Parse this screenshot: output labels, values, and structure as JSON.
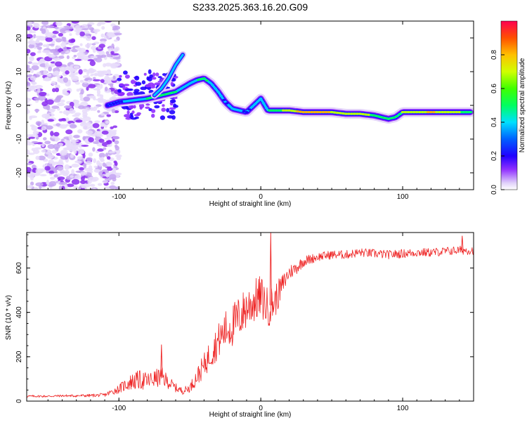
{
  "title": "S233.2025.363.16.20.G09",
  "chart_data": [
    {
      "type": "heatmap",
      "xlabel": "Height of straight line (km)",
      "ylabel": "Frequency (Hz)",
      "xlim": [
        -165,
        150
      ],
      "ylim": [
        -25,
        25
      ],
      "x_ticks": [
        -100,
        0,
        100
      ],
      "y_ticks": [
        -20,
        -10,
        0,
        10,
        20
      ],
      "colorbar": {
        "label": "Normalized spectral amplitude",
        "range": [
          0,
          1
        ],
        "ticks": [
          "0.0",
          "0.2",
          "0.4",
          "0.6",
          "0.8"
        ],
        "tick_values": [
          0.0,
          0.2,
          0.4,
          0.6,
          0.8
        ],
        "colors": [
          "#ffffff",
          "#c8a8f0",
          "#8000ff",
          "#0000ff",
          "#00ffff",
          "#00ff00",
          "#ffff00",
          "#ff8000",
          "#ff0040"
        ]
      },
      "ridge": {
        "x": [
          -108,
          -100,
          -90,
          -80,
          -70,
          -60,
          -50,
          -45,
          -40,
          -35,
          -30,
          -25,
          -20,
          -15,
          -10,
          -5,
          0,
          5,
          10,
          20,
          30,
          40,
          50,
          60,
          70,
          80,
          85,
          90,
          95,
          100,
          110,
          120,
          130,
          140,
          148
        ],
        "y": [
          0,
          1,
          1.5,
          2,
          3,
          4,
          6.5,
          7.5,
          8,
          6.5,
          4,
          1,
          -1,
          -1.5,
          -2,
          0,
          2,
          -1.5,
          -1.5,
          -1.5,
          -2,
          -2,
          -2,
          -2.5,
          -2.5,
          -3,
          -3.5,
          -4,
          -3.5,
          -2,
          -2,
          -2,
          -2,
          -2,
          -2
        ],
        "amplitude": [
          0.3,
          0.35,
          0.45,
          0.5,
          0.55,
          0.5,
          0.45,
          0.5,
          0.55,
          0.45,
          0.4,
          0.35,
          0.4,
          0.4,
          0.35,
          0.4,
          0.45,
          0.5,
          0.6,
          0.7,
          0.85,
          0.9,
          0.75,
          0.7,
          0.75,
          0.6,
          0.5,
          0.5,
          0.55,
          0.65,
          0.7,
          0.8,
          0.7,
          0.65,
          0.6
        ]
      },
      "upper_branch": {
        "x": [
          -75,
          -70,
          -65,
          -60,
          -55
        ],
        "y": [
          3,
          5,
          8,
          12,
          15
        ]
      },
      "noise_region": {
        "x_range": [
          -165,
          -100
        ],
        "y_range": [
          -25,
          25
        ]
      }
    },
    {
      "type": "line",
      "xlabel": "Height of straight line (km)",
      "ylabel": "SNR (10 * v/v)",
      "xlim": [
        -165,
        150
      ],
      "ylim": [
        0,
        760
      ],
      "x_ticks": [
        -100,
        0,
        100
      ],
      "y_ticks": [
        0,
        200,
        400,
        600
      ],
      "line_color": "#ee2222",
      "series": [
        {
          "name": "SNR",
          "x": [
            -165,
            -150,
            -140,
            -130,
            -120,
            -110,
            -100,
            -95,
            -90,
            -85,
            -80,
            -75,
            -70,
            -65,
            -60,
            -55,
            -50,
            -45,
            -40,
            -35,
            -30,
            -25,
            -20,
            -15,
            -10,
            -5,
            0,
            5,
            10,
            15,
            20,
            25,
            30,
            40,
            50,
            60,
            70,
            80,
            90,
            100,
            110,
            120,
            130,
            140,
            150
          ],
          "y": [
            22,
            22,
            24,
            24,
            25,
            28,
            55,
            75,
            90,
            95,
            90,
            100,
            110,
            85,
            60,
            45,
            60,
            110,
            160,
            220,
            270,
            320,
            340,
            380,
            420,
            450,
            470,
            420,
            450,
            520,
            580,
            600,
            630,
            650,
            660,
            660,
            670,
            665,
            660,
            665,
            670,
            670,
            675,
            680,
            680
          ],
          "spread": [
            10,
            10,
            10,
            12,
            14,
            16,
            40,
            60,
            80,
            90,
            80,
            80,
            90,
            60,
            40,
            30,
            40,
            80,
            110,
            140,
            160,
            180,
            200,
            200,
            200,
            200,
            200,
            180,
            160,
            100,
            70,
            60,
            50,
            40,
            40,
            40,
            40,
            40,
            40,
            40,
            40,
            40,
            40,
            40,
            40
          ],
          "spikes": [
            {
              "x": -70,
              "y": 255
            },
            {
              "x": 7,
              "y": 760
            },
            {
              "x": 142,
              "y": 745
            }
          ]
        }
      ]
    }
  ]
}
